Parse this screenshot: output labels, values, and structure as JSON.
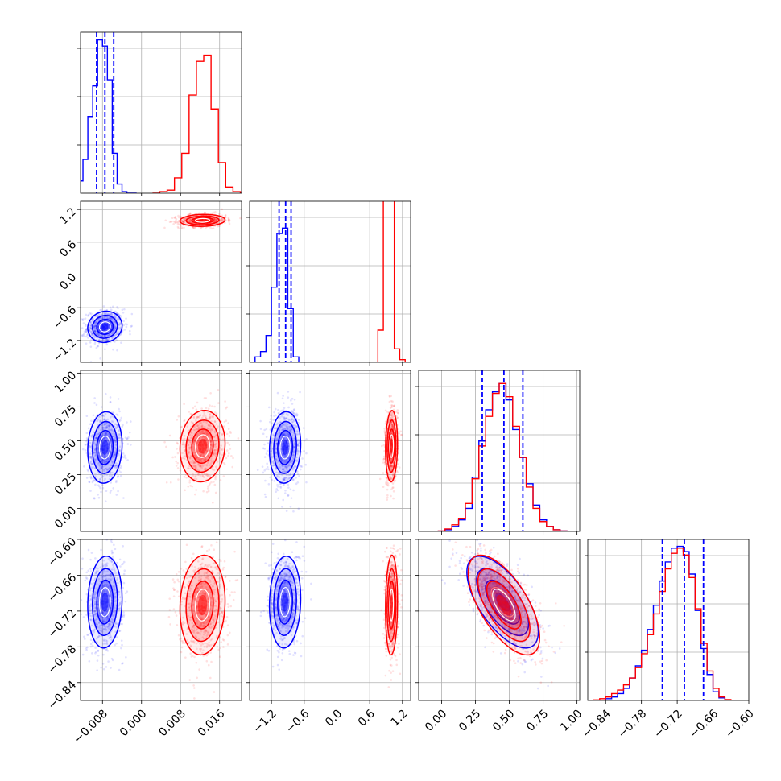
{
  "chart_data": {
    "type": "corner",
    "title": "",
    "grid": true,
    "colors": {
      "blue": "#0000ff",
      "red": "#ff0000"
    },
    "parameters": [
      {
        "range": [
          -0.0125,
          0.0205
        ],
        "ticks": [
          -0.008,
          0.0,
          0.008,
          0.016
        ],
        "tick_labels": [
          "−0.008",
          "0.000",
          "0.008",
          "0.016"
        ]
      },
      {
        "range": [
          -1.6,
          1.35
        ],
        "ticks": [
          -1.2,
          -0.6,
          0.0,
          0.6,
          1.2
        ],
        "tick_labels": [
          "−1.2",
          "−0.6",
          "0.0",
          "0.6",
          "1.2"
        ]
      },
      {
        "range": [
          -0.17,
          1.02
        ],
        "ticks": [
          0.0,
          0.25,
          0.5,
          0.75,
          1.0
        ],
        "tick_labels": [
          "0.00",
          "0.25",
          "0.50",
          "0.75",
          "1.00"
        ]
      },
      {
        "range": [
          -0.87,
          -0.6
        ],
        "ticks": [
          -0.84,
          -0.78,
          -0.72,
          -0.66,
          -0.6
        ],
        "tick_labels": [
          "−0.84",
          "−0.78",
          "−0.72",
          "−0.66",
          "−0.60"
        ]
      }
    ],
    "y_tick_params": [
      1,
      2,
      3
    ],
    "series": [
      {
        "color": "#0000ff",
        "mean": [
          -0.0075,
          -0.95,
          0.45,
          -0.705
        ],
        "sd": [
          0.0016,
          0.13,
          0.12,
          0.035
        ],
        "quantiles": [
          [
            -0.0092,
            -0.0075,
            -0.0057
          ],
          [
            -1.06,
            -0.94,
            -0.84
          ],
          [
            0.3,
            0.46,
            0.6
          ],
          [
            -0.745,
            -0.708,
            -0.676
          ]
        ]
      },
      {
        "color": "#ff0000",
        "mean": [
          0.0125,
          1.0,
          0.46,
          -0.71
        ],
        "sd": [
          0.0021,
          0.05,
          0.12,
          0.038
        ]
      }
    ],
    "correlation_param_3_4": -0.65,
    "histograms": [
      {
        "x": [
          -0.0125,
          -0.0115,
          -0.0105,
          -0.0095,
          -0.0085,
          -0.0075,
          -0.0065,
          -0.0055,
          -0.0045,
          -0.0035,
          -0.0025,
          -0.0015
        ],
        "blue": [
          0.08,
          0.22,
          0.5,
          0.7,
          1.0,
          0.96,
          0.74,
          0.26,
          0.06,
          0.01,
          0,
          0
        ],
        "red_x": [
          0.003,
          0.0045,
          0.006,
          0.0075,
          0.009,
          0.0105,
          0.012,
          0.0135,
          0.015,
          0.0165,
          0.018,
          0.0195
        ],
        "red": [
          0,
          0.01,
          0.02,
          0.1,
          0.26,
          0.64,
          0.86,
          0.9,
          0.55,
          0.2,
          0.04,
          0.01
        ]
      },
      {
        "x": [
          -1.45,
          -1.35,
          -1.25,
          -1.15,
          -1.05,
          -0.95,
          -0.85,
          -0.75,
          -0.65
        ],
        "blue": [
          0.02,
          0.04,
          0.1,
          0.28,
          0.48,
          0.5,
          0.2,
          0.02,
          0
        ],
        "red_x": [
          0.7,
          0.8,
          0.9,
          1.0,
          1.1,
          1.2,
          1.3
        ],
        "red": [
          0,
          0.12,
          0.82,
          0.86,
          0.05,
          0.01,
          0
        ]
      },
      {
        "x": [
          -0.05,
          0.0,
          0.05,
          0.1,
          0.15,
          0.2,
          0.25,
          0.3,
          0.35,
          0.4,
          0.45,
          0.5,
          0.55,
          0.6,
          0.65,
          0.7,
          0.75,
          0.8,
          0.85,
          0.9,
          0.95
        ],
        "blue": [
          0,
          0.002,
          0.01,
          0.03,
          0.07,
          0.14,
          0.33,
          0.55,
          0.74,
          0.85,
          0.9,
          0.8,
          0.62,
          0.45,
          0.29,
          0.16,
          0.07,
          0.03,
          0.01,
          0.003,
          0
        ],
        "red": [
          0,
          0.003,
          0.015,
          0.04,
          0.08,
          0.17,
          0.32,
          0.52,
          0.7,
          0.84,
          0.9,
          0.82,
          0.64,
          0.45,
          0.27,
          0.14,
          0.06,
          0.03,
          0.01,
          0.003,
          0
        ]
      },
      {
        "x": [
          -0.865,
          -0.855,
          -0.845,
          -0.835,
          -0.825,
          -0.815,
          -0.805,
          -0.795,
          -0.785,
          -0.775,
          -0.765,
          -0.755,
          -0.745,
          -0.735,
          -0.725,
          -0.715,
          -0.705,
          -0.695,
          -0.685,
          -0.675,
          -0.665,
          -0.655,
          -0.645,
          -0.635,
          -0.625
        ],
        "blue": [
          0,
          0,
          0,
          0.01,
          0.02,
          0.04,
          0.07,
          0.13,
          0.2,
          0.29,
          0.41,
          0.55,
          0.69,
          0.8,
          0.88,
          0.89,
          0.86,
          0.73,
          0.52,
          0.3,
          0.15,
          0.05,
          0.015,
          0.003,
          0
        ],
        "red": [
          0,
          0.003,
          0.01,
          0.02,
          0.04,
          0.06,
          0.09,
          0.13,
          0.19,
          0.27,
          0.38,
          0.5,
          0.63,
          0.76,
          0.85,
          0.88,
          0.84,
          0.71,
          0.53,
          0.33,
          0.17,
          0.07,
          0.02,
          0.005,
          0
        ]
      }
    ],
    "hist_ymax": [
      1.05,
      0.6,
      0.98,
      0.93
    ]
  }
}
